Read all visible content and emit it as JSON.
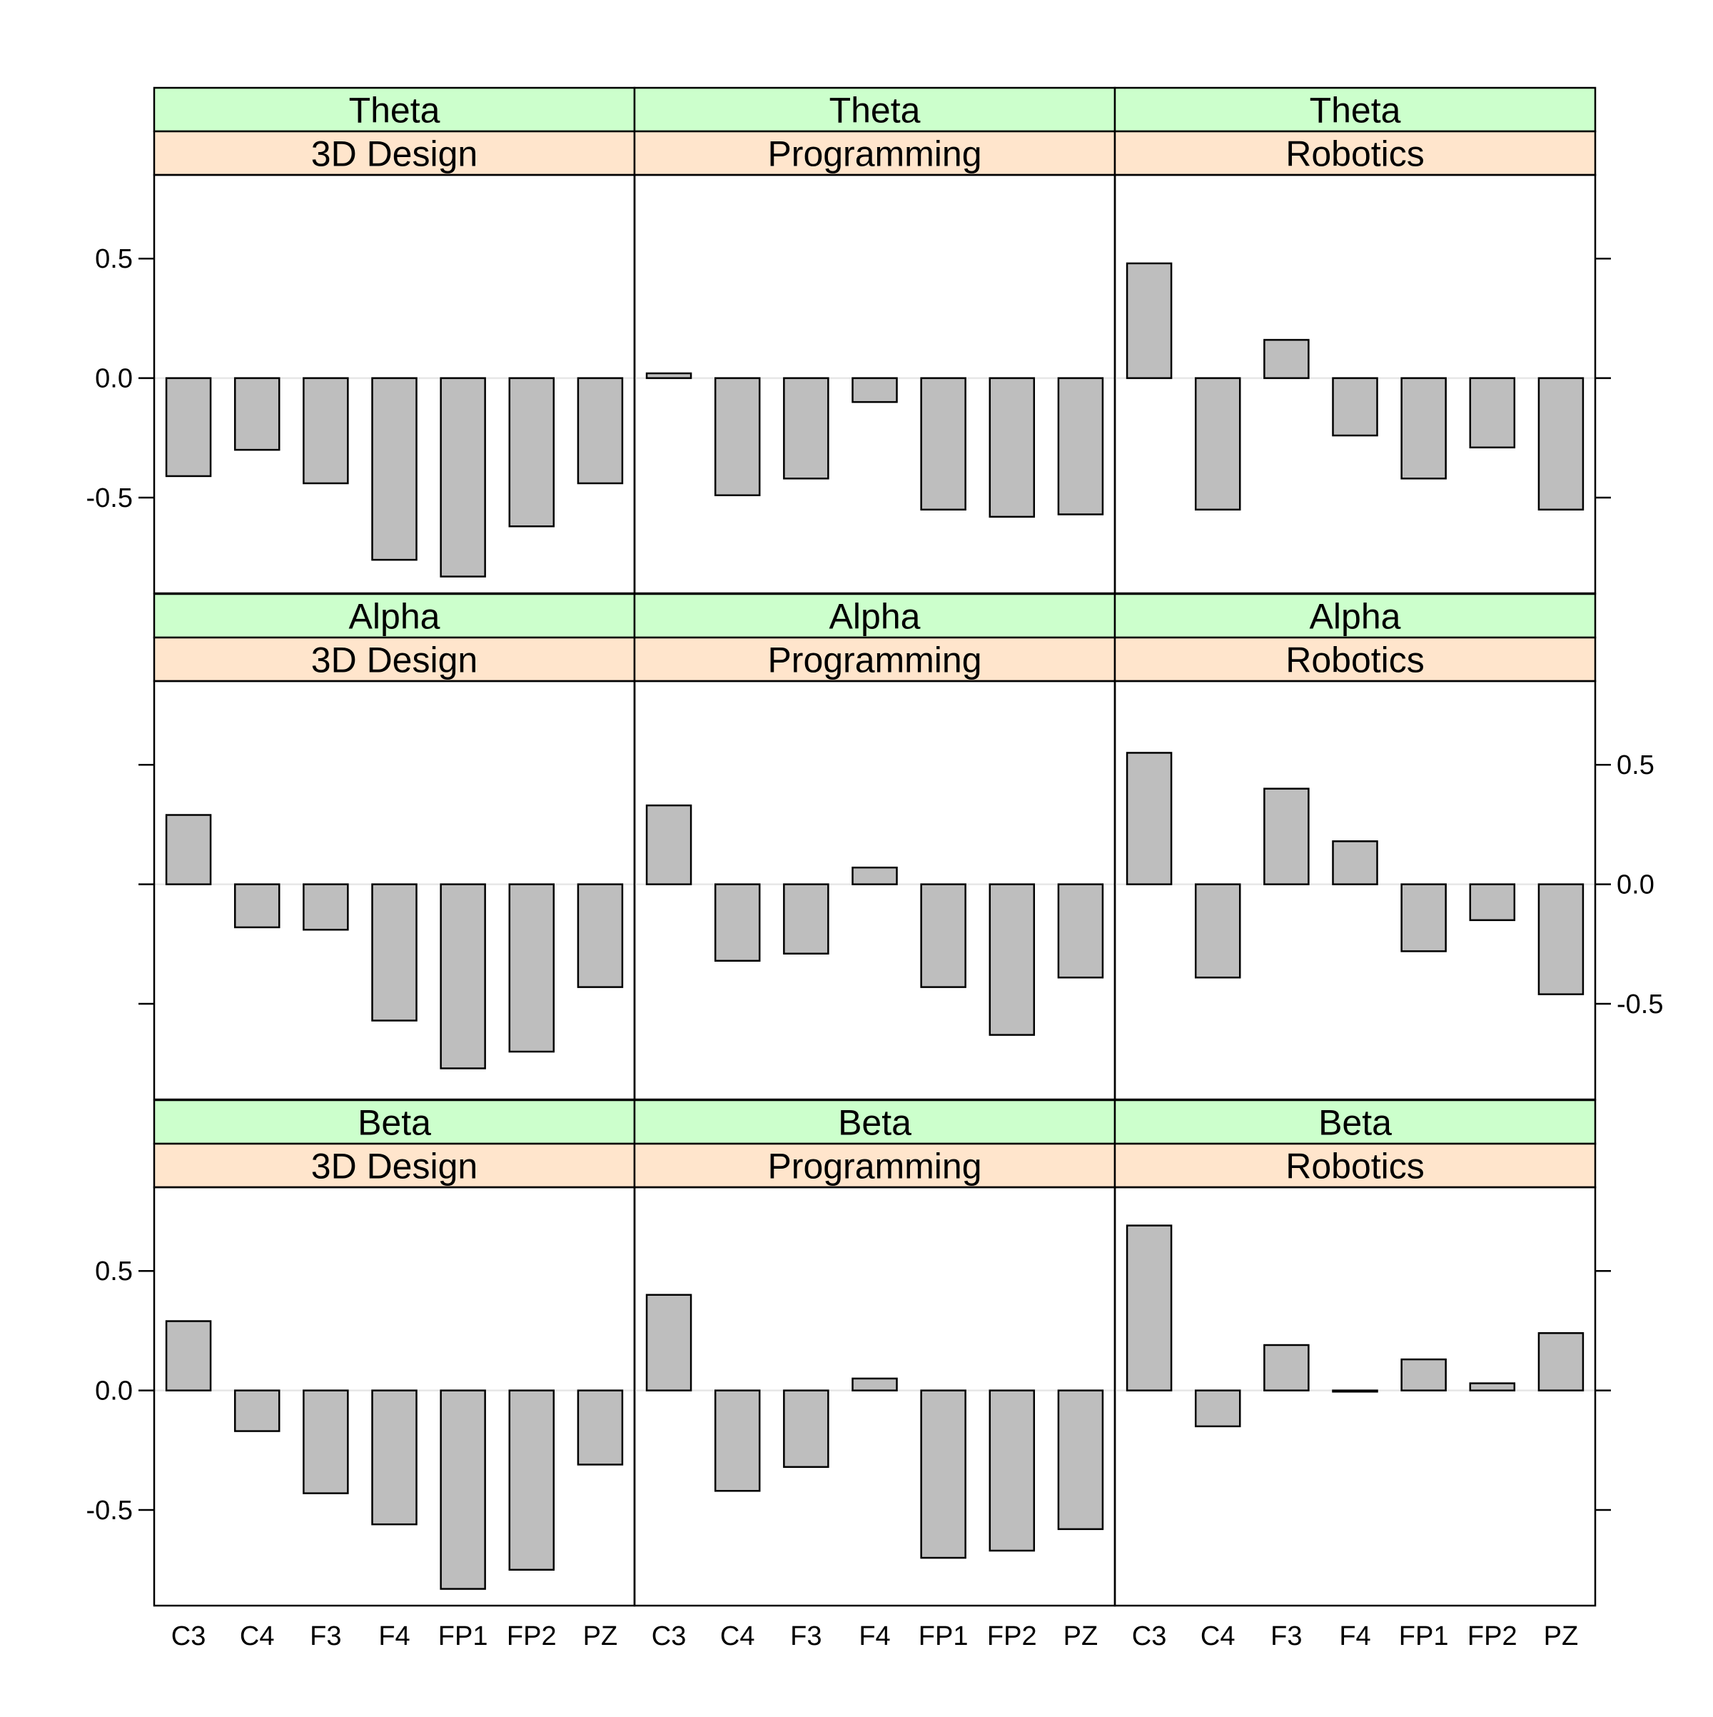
{
  "chart_data": {
    "type": "bar",
    "layout": "trellis 3x3",
    "categories": [
      "C3",
      "C4",
      "F3",
      "F4",
      "FP1",
      "FP2",
      "PZ"
    ],
    "ylim": [
      -0.9,
      0.85
    ],
    "yticks": [
      -0.5,
      0.0,
      0.5
    ],
    "ytick_labels": [
      "-0.5",
      "0.0",
      "0.5"
    ],
    "zero_reference_line": true,
    "colors": {
      "bar_fill": "#bebebe",
      "bar_stroke": "#000000",
      "strip_outer": "#ccffcc",
      "strip_inner": "#ffe5cc",
      "reference_line": "#e6e6e6"
    },
    "panels": [
      {
        "band": "Theta",
        "subject": "3D Design",
        "values": [
          -0.41,
          -0.3,
          -0.44,
          -0.76,
          -0.83,
          -0.62,
          -0.44
        ]
      },
      {
        "band": "Theta",
        "subject": "Programming",
        "values": [
          0.02,
          -0.49,
          -0.42,
          -0.1,
          -0.55,
          -0.58,
          -0.57
        ]
      },
      {
        "band": "Theta",
        "subject": "Robotics",
        "values": [
          0.48,
          -0.55,
          0.16,
          -0.24,
          -0.42,
          -0.29,
          -0.55
        ]
      },
      {
        "band": "Alpha",
        "subject": "3D Design",
        "values": [
          0.29,
          -0.18,
          -0.19,
          -0.57,
          -0.77,
          -0.7,
          -0.43
        ]
      },
      {
        "band": "Alpha",
        "subject": "Programming",
        "values": [
          0.33,
          -0.32,
          -0.29,
          0.07,
          -0.43,
          -0.63,
          -0.39
        ]
      },
      {
        "band": "Alpha",
        "subject": "Robotics",
        "values": [
          0.55,
          -0.39,
          0.4,
          0.18,
          -0.28,
          -0.15,
          -0.46
        ]
      },
      {
        "band": "Beta",
        "subject": "3D Design",
        "values": [
          0.29,
          -0.17,
          -0.43,
          -0.56,
          -0.83,
          -0.75,
          -0.31
        ]
      },
      {
        "band": "Beta",
        "subject": "Programming",
        "values": [
          0.4,
          -0.42,
          -0.32,
          0.05,
          -0.7,
          -0.67,
          -0.58
        ]
      },
      {
        "band": "Beta",
        "subject": "Robotics",
        "values": [
          0.69,
          -0.15,
          0.19,
          -0.005,
          0.13,
          0.03,
          0.24
        ]
      }
    ]
  }
}
